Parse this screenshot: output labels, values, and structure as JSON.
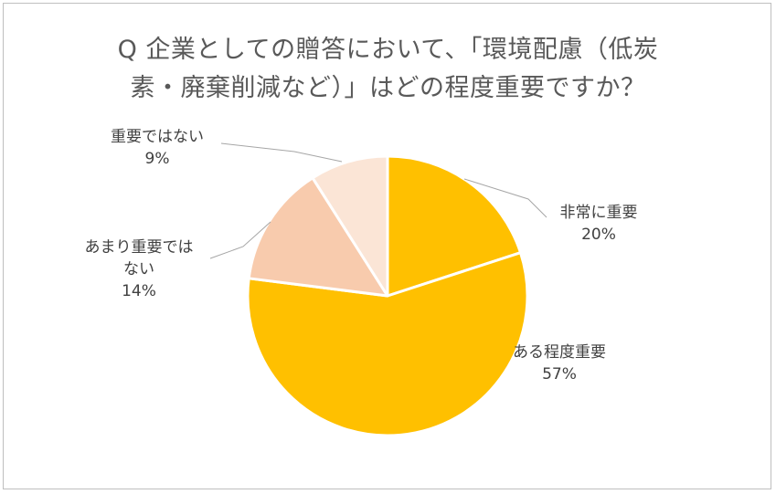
{
  "title": {
    "line1": "Q 企業としての贈答において、「環境配慮（低炭",
    "line2": "素・廃棄削減など）」はどの程度重要ですか？"
  },
  "chart_data": {
    "type": "pie",
    "title": "Q 企業としての贈答において、「環境配慮（低炭素・廃棄削減など）」はどの程度重要ですか？",
    "start_angle_deg": 0,
    "direction": "clockwise",
    "slices": [
      {
        "label": "非常に重要",
        "value": 20,
        "value_label": "20%",
        "color": "#ffc000"
      },
      {
        "label": "ある程度重要",
        "value": 57,
        "value_label": "57%",
        "color": "#ffc000"
      },
      {
        "label": "あまり重要ではない",
        "value": 14,
        "value_label": "14%",
        "color": "#f8cbad"
      },
      {
        "label": "重要ではない",
        "value": 9,
        "value_label": "9%",
        "color": "#fbe5d6"
      }
    ],
    "label_lines": [
      [
        "非常に重要",
        "20%"
      ],
      [
        "ある程度重要",
        "57%"
      ],
      [
        "あまり重要では",
        "ない",
        "14%"
      ],
      [
        "重要ではない",
        "9%"
      ]
    ],
    "legend": "none"
  }
}
